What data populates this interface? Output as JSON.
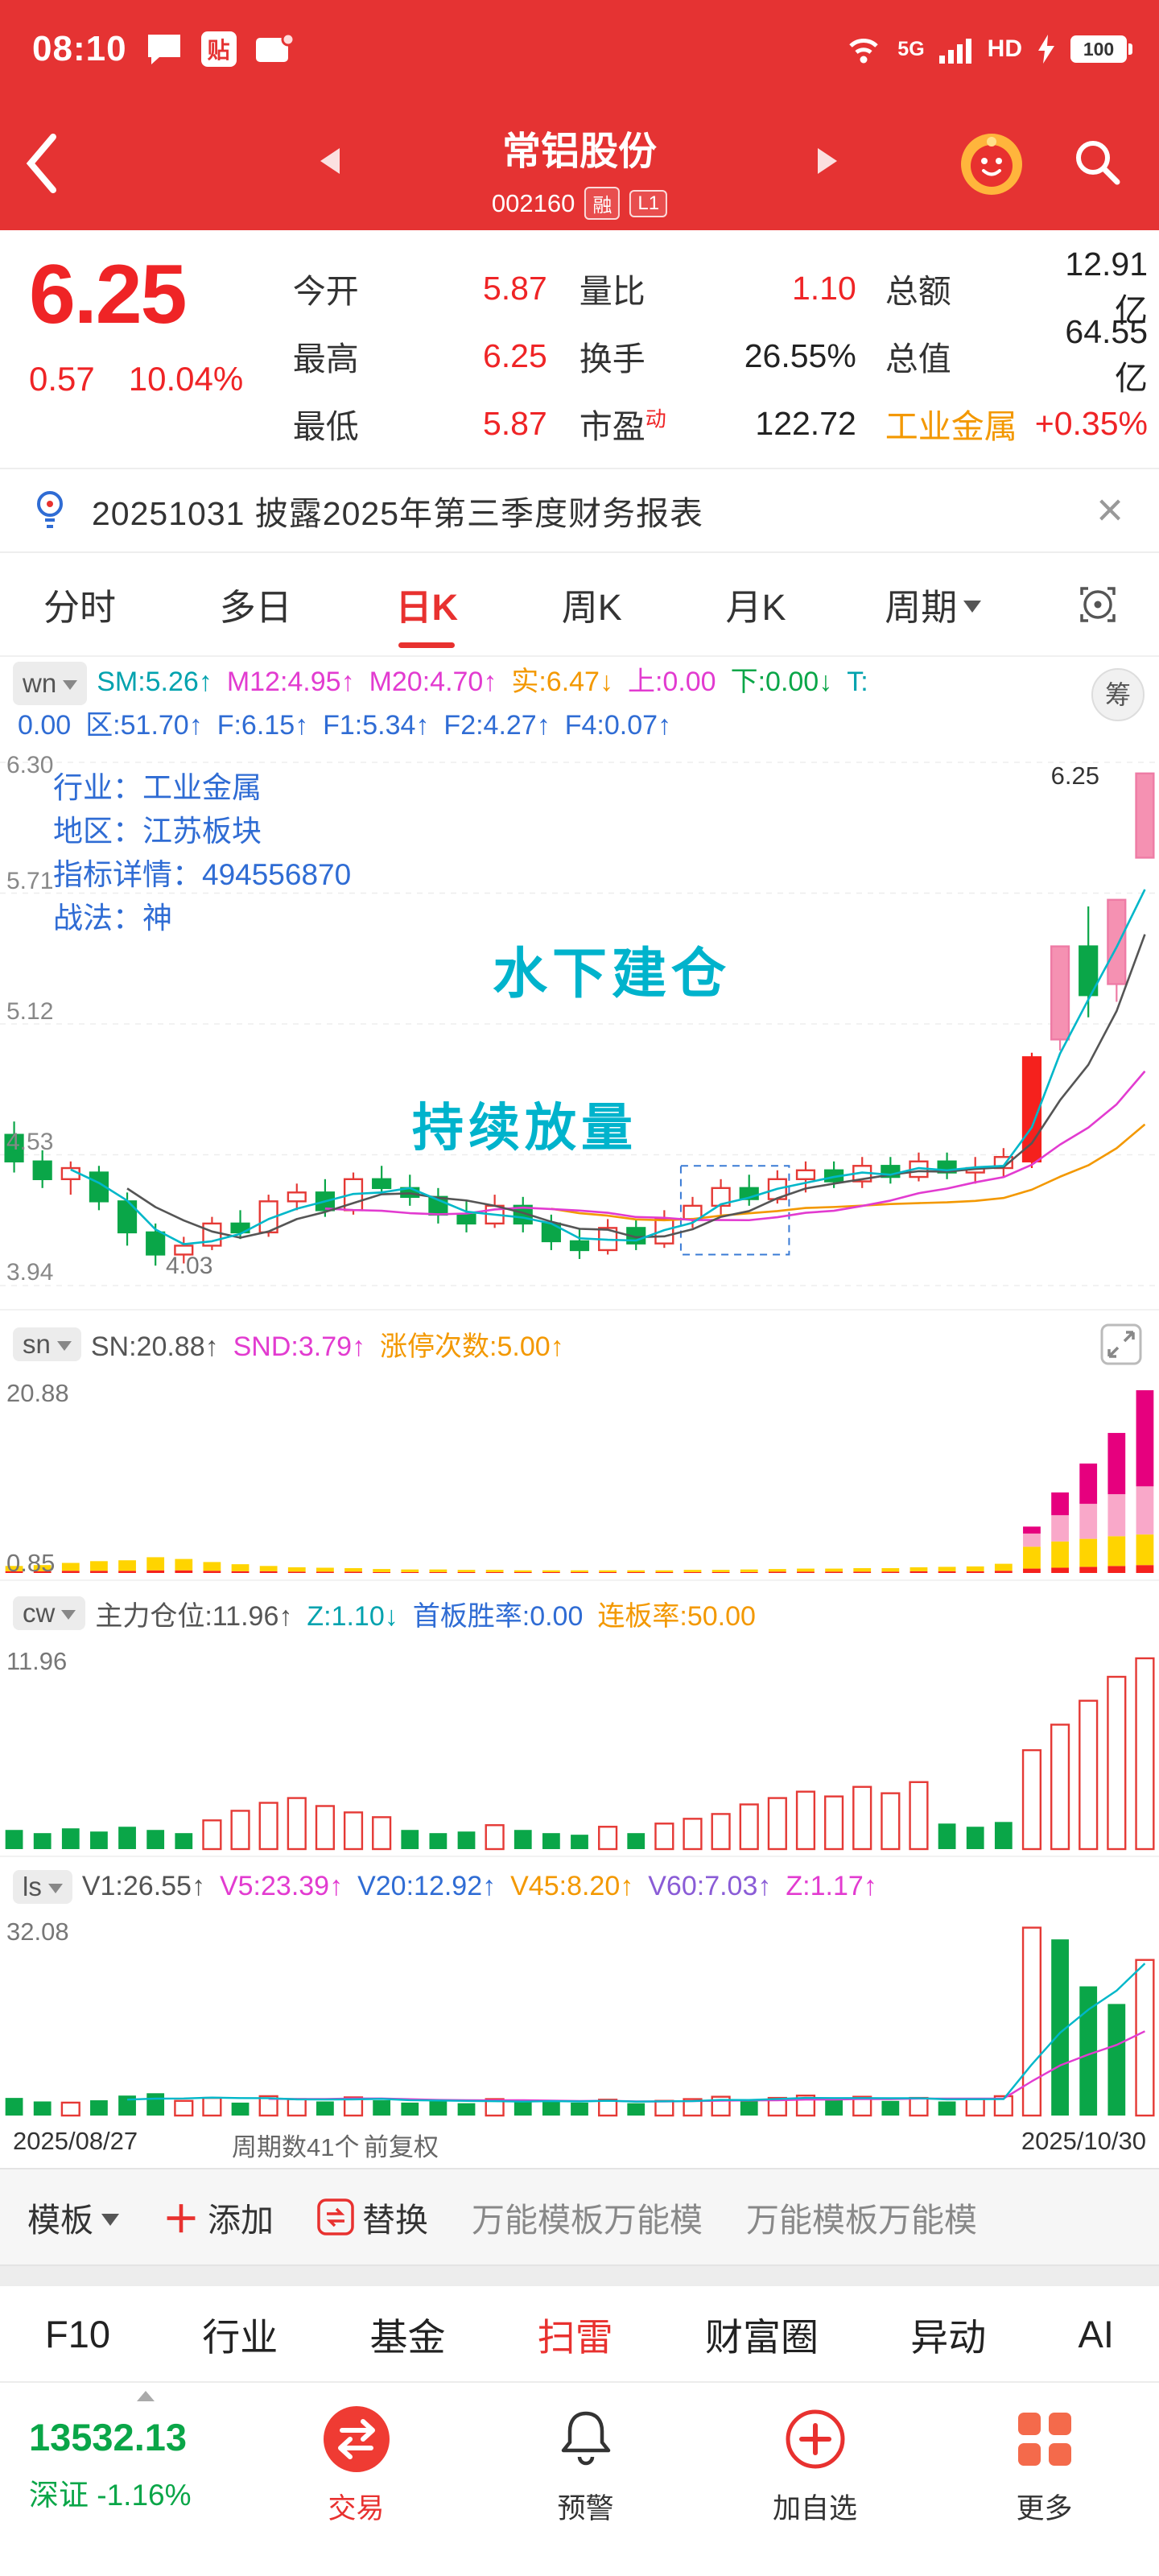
{
  "colors": {
    "accent_red": "#e8312f",
    "up_red": "#f5211d",
    "down_green": "#0aa648",
    "pink": "#f591b2",
    "magenta": "#e6007e",
    "yellow": "#ffd400",
    "blue": "#2f6cd4",
    "cyan": "#00b3cc",
    "orange": "#f39800"
  },
  "status_bar": {
    "time": "08:10",
    "badge": "贴",
    "net_label": "5G",
    "hd_label": "HD",
    "battery": "100"
  },
  "header": {
    "title": "常铝股份",
    "code": "002160",
    "badge_margin": "融",
    "badge_level": "L1"
  },
  "quote": {
    "price": "6.25",
    "change": "0.57",
    "change_pct": "10.04%",
    "open_label": "今开",
    "open": "5.87",
    "high_label": "最高",
    "high": "6.25",
    "low_label": "最低",
    "low": "5.87",
    "vol_ratio_label": "量比",
    "vol_ratio": "1.10",
    "turnover_label": "换手",
    "turnover": "26.55%",
    "pe_label": "市盈",
    "pe_sup": "动",
    "pe": "122.72",
    "amount_label": "总额",
    "amount": "12.91亿",
    "mktcap_label": "总值",
    "mktcap": "64.55亿",
    "sector_label": "工业金属",
    "sector_chg": "+0.35%"
  },
  "notice": {
    "text": "20251031 披露2025年第三季度财务报表"
  },
  "tabs": {
    "items": [
      "分时",
      "多日",
      "日K",
      "周K",
      "月K"
    ],
    "active": "日K",
    "period": "周期"
  },
  "indicators": {
    "chip_button": "筹",
    "wn": {
      "chip": "wn",
      "line1": [
        {
          "t": "SM:5.26↑",
          "c": "#00a2ae"
        },
        {
          "t": "M12:4.95↑",
          "c": "#e23bd0"
        },
        {
          "t": "M20:4.70↑",
          "c": "#e23bd0"
        },
        {
          "t": "实:6.47↓",
          "c": "#f39800"
        },
        {
          "t": "上:0.00",
          "c": "#e23bd0"
        },
        {
          "t": "下:0.00↓",
          "c": "#0aa648"
        },
        {
          "t": "T:",
          "c": "#00a2ae"
        }
      ],
      "line2": [
        {
          "t": "0.00",
          "c": "#2f6cd4"
        },
        {
          "t": "区:51.70↑",
          "c": "#2f6cd4"
        },
        {
          "t": "F:6.15↑",
          "c": "#2f6cd4"
        },
        {
          "t": "F1:5.34↑",
          "c": "#2f6cd4"
        },
        {
          "t": "F2:4.27↑",
          "c": "#2f6cd4"
        },
        {
          "t": "F4:0.07↑",
          "c": "#2f6cd4"
        }
      ]
    },
    "sn": {
      "chip": "sn",
      "segments": [
        {
          "t": "SN:20.88↑",
          "c": "#555555"
        },
        {
          "t": "SND:3.79↑",
          "c": "#e23bd0"
        },
        {
          "t": "涨停次数:5.00↑",
          "c": "#f39800"
        }
      ]
    },
    "cw": {
      "chip": "cw",
      "segments": [
        {
          "t": "主力仓位:11.96↑",
          "c": "#555555"
        },
        {
          "t": "Z:1.10↓",
          "c": "#00a2ae"
        },
        {
          "t": "首板胜率:0.00",
          "c": "#2f6cd4"
        },
        {
          "t": "连板率:50.00",
          "c": "#f39800"
        }
      ]
    },
    "ls": {
      "chip": "ls",
      "segments": [
        {
          "t": "V1:26.55↑",
          "c": "#555555"
        },
        {
          "t": "V5:23.39↑",
          "c": "#e23bd0"
        },
        {
          "t": "V20:12.92↑",
          "c": "#2f6cd4"
        },
        {
          "t": "V45:8.20↑",
          "c": "#f39800"
        },
        {
          "t": "V60:7.03↑",
          "c": "#8a5cd6"
        },
        {
          "t": "Z:1.17↑",
          "c": "#e23bd0"
        }
      ]
    }
  },
  "chart_data": {
    "type": "candlestick",
    "title": "常铝股份 002160 日K 前复权",
    "date_range": [
      "2025/08/27",
      "2025/10/30"
    ],
    "periods": 41,
    "main": {
      "axis_max": 6.3,
      "axis_min": 3.94,
      "ylabels": [
        "6.30",
        "5.71",
        "5.12",
        "4.53",
        "3.94"
      ],
      "max_label": "6.25",
      "min_label": "4.03",
      "overlay": {
        "industry": "行业：工业金属",
        "region": "地区：江苏板块",
        "detail": "指标详情：494556870",
        "strategy": "战法：神",
        "note1": "水下建仓",
        "note2": "持续放量"
      },
      "box": {
        "from": 25,
        "to": 28,
        "top": 4.48,
        "bottom": 4.08
      },
      "candles": [
        [
          4.62,
          4.68,
          4.45,
          4.5,
          "g"
        ],
        [
          4.5,
          4.55,
          4.38,
          4.42,
          "g"
        ],
        [
          4.42,
          4.5,
          4.35,
          4.47,
          "r"
        ],
        [
          4.45,
          4.48,
          4.28,
          4.32,
          "g"
        ],
        [
          4.32,
          4.36,
          4.12,
          4.18,
          "g"
        ],
        [
          4.18,
          4.22,
          4.03,
          4.08,
          "g"
        ],
        [
          4.08,
          4.16,
          4.04,
          4.12,
          "r"
        ],
        [
          4.12,
          4.25,
          4.1,
          4.22,
          "r"
        ],
        [
          4.22,
          4.28,
          4.15,
          4.18,
          "g"
        ],
        [
          4.18,
          4.35,
          4.16,
          4.32,
          "r"
        ],
        [
          4.32,
          4.4,
          4.28,
          4.36,
          "r"
        ],
        [
          4.36,
          4.42,
          4.25,
          4.28,
          "g"
        ],
        [
          4.28,
          4.45,
          4.26,
          4.42,
          "r"
        ],
        [
          4.42,
          4.48,
          4.35,
          4.38,
          "g"
        ],
        [
          4.38,
          4.44,
          4.3,
          4.34,
          "g"
        ],
        [
          4.34,
          4.38,
          4.22,
          4.26,
          "g"
        ],
        [
          4.26,
          4.32,
          4.18,
          4.22,
          "g"
        ],
        [
          4.22,
          4.35,
          4.2,
          4.3,
          "r"
        ],
        [
          4.3,
          4.34,
          4.18,
          4.22,
          "g"
        ],
        [
          4.22,
          4.26,
          4.1,
          4.14,
          "g"
        ],
        [
          4.14,
          4.2,
          4.06,
          4.1,
          "g"
        ],
        [
          4.1,
          4.24,
          4.08,
          4.2,
          "r"
        ],
        [
          4.2,
          4.24,
          4.1,
          4.13,
          "g"
        ],
        [
          4.13,
          4.28,
          4.11,
          4.24,
          "r"
        ],
        [
          4.24,
          4.34,
          4.2,
          4.3,
          "r"
        ],
        [
          4.3,
          4.42,
          4.26,
          4.38,
          "r"
        ],
        [
          4.38,
          4.44,
          4.3,
          4.33,
          "g"
        ],
        [
          4.33,
          4.46,
          4.31,
          4.42,
          "r"
        ],
        [
          4.42,
          4.5,
          4.36,
          4.46,
          "r"
        ],
        [
          4.46,
          4.5,
          4.38,
          4.41,
          "g"
        ],
        [
          4.41,
          4.52,
          4.38,
          4.48,
          "r"
        ],
        [
          4.48,
          4.52,
          4.4,
          4.43,
          "g"
        ],
        [
          4.43,
          4.54,
          4.41,
          4.5,
          "r"
        ],
        [
          4.5,
          4.54,
          4.42,
          4.45,
          "g"
        ],
        [
          4.45,
          4.52,
          4.4,
          4.47,
          "r"
        ],
        [
          4.47,
          4.56,
          4.43,
          4.52,
          "r"
        ],
        [
          4.5,
          4.99,
          4.47,
          4.97,
          "R"
        ],
        [
          5.05,
          5.47,
          5.0,
          5.47,
          "p"
        ],
        [
          5.47,
          5.65,
          5.15,
          5.25,
          "g"
        ],
        [
          5.3,
          5.68,
          5.22,
          5.68,
          "p"
        ],
        [
          5.87,
          6.25,
          5.87,
          6.25,
          "p"
        ]
      ]
    },
    "sn": {
      "ymax": 20.88,
      "ylabel_top": "20.88",
      "ylabel_bottom": "0.85",
      "bars": [
        [
          0.2,
          0.6,
          0,
          0
        ],
        [
          0.2,
          0.7,
          0,
          0
        ],
        [
          0.25,
          0.9,
          0,
          0
        ],
        [
          0.25,
          1.1,
          0,
          0
        ],
        [
          0.25,
          1.2,
          0,
          0
        ],
        [
          0.3,
          1.5,
          0,
          0
        ],
        [
          0.3,
          1.3,
          0,
          0
        ],
        [
          0.25,
          1.0,
          0,
          0
        ],
        [
          0.2,
          0.8,
          0,
          0
        ],
        [
          0.2,
          0.6,
          0,
          0
        ],
        [
          0.15,
          0.5,
          0,
          0
        ],
        [
          0.15,
          0.45,
          0,
          0
        ],
        [
          0.15,
          0.4,
          0,
          0
        ],
        [
          0.1,
          0.35,
          0,
          0
        ],
        [
          0.1,
          0.3,
          0,
          0
        ],
        [
          0.1,
          0.3,
          0,
          0
        ],
        [
          0.1,
          0.25,
          0,
          0
        ],
        [
          0.1,
          0.25,
          0,
          0
        ],
        [
          0.1,
          0.2,
          0,
          0
        ],
        [
          0.1,
          0.2,
          0,
          0
        ],
        [
          0.1,
          0.2,
          0,
          0
        ],
        [
          0.1,
          0.2,
          0,
          0
        ],
        [
          0.1,
          0.2,
          0,
          0
        ],
        [
          0.1,
          0.2,
          0,
          0
        ],
        [
          0.1,
          0.25,
          0,
          0
        ],
        [
          0.1,
          0.25,
          0,
          0
        ],
        [
          0.1,
          0.3,
          0,
          0
        ],
        [
          0.15,
          0.3,
          0,
          0
        ],
        [
          0.15,
          0.35,
          0,
          0
        ],
        [
          0.15,
          0.35,
          0,
          0
        ],
        [
          0.15,
          0.4,
          0,
          0
        ],
        [
          0.15,
          0.4,
          0,
          0
        ],
        [
          0.2,
          0.45,
          0,
          0
        ],
        [
          0.2,
          0.5,
          0,
          0
        ],
        [
          0.2,
          0.55,
          0,
          0
        ],
        [
          0.25,
          0.8,
          0,
          0
        ],
        [
          0.5,
          2.5,
          1.5,
          0.8
        ],
        [
          0.6,
          3.0,
          3.0,
          2.6
        ],
        [
          0.7,
          3.2,
          4.0,
          4.6
        ],
        [
          0.8,
          3.4,
          4.8,
          7.0
        ],
        [
          0.9,
          3.5,
          5.5,
          10.98
        ]
      ]
    },
    "cw": {
      "ymax": 11.96,
      "ylabel_top": "11.96",
      "bars": [
        [
          1.2,
          "g"
        ],
        [
          1.0,
          "g"
        ],
        [
          1.3,
          "g"
        ],
        [
          1.1,
          "g"
        ],
        [
          1.4,
          "g"
        ],
        [
          1.2,
          "g"
        ],
        [
          1.0,
          "g"
        ],
        [
          1.8,
          "r"
        ],
        [
          2.4,
          "r"
        ],
        [
          2.9,
          "r"
        ],
        [
          3.2,
          "r"
        ],
        [
          2.7,
          "r"
        ],
        [
          2.3,
          "r"
        ],
        [
          2.0,
          "r"
        ],
        [
          1.2,
          "g"
        ],
        [
          1.0,
          "g"
        ],
        [
          1.1,
          "g"
        ],
        [
          1.5,
          "r"
        ],
        [
          1.2,
          "g"
        ],
        [
          1.0,
          "g"
        ],
        [
          0.9,
          "g"
        ],
        [
          1.4,
          "r"
        ],
        [
          1.0,
          "g"
        ],
        [
          1.6,
          "r"
        ],
        [
          1.9,
          "r"
        ],
        [
          2.2,
          "r"
        ],
        [
          2.8,
          "r"
        ],
        [
          3.2,
          "r"
        ],
        [
          3.6,
          "r"
        ],
        [
          3.3,
          "r"
        ],
        [
          3.9,
          "r"
        ],
        [
          3.5,
          "r"
        ],
        [
          4.2,
          "r"
        ],
        [
          1.6,
          "g"
        ],
        [
          1.4,
          "g"
        ],
        [
          1.7,
          "g"
        ],
        [
          6.2,
          "r"
        ],
        [
          7.8,
          "r"
        ],
        [
          9.3,
          "r"
        ],
        [
          10.8,
          "r"
        ],
        [
          11.96,
          "r"
        ]
      ]
    },
    "ls": {
      "ymax": 32.08,
      "ylabel_top": "32.08",
      "bars": [
        [
          3.0,
          "g"
        ],
        [
          2.4,
          "g"
        ],
        [
          2.2,
          "r"
        ],
        [
          2.6,
          "g"
        ],
        [
          3.4,
          "g"
        ],
        [
          3.8,
          "g"
        ],
        [
          2.5,
          "r"
        ],
        [
          3.0,
          "r"
        ],
        [
          2.2,
          "g"
        ],
        [
          3.3,
          "r"
        ],
        [
          2.8,
          "r"
        ],
        [
          2.4,
          "g"
        ],
        [
          3.1,
          "r"
        ],
        [
          2.6,
          "g"
        ],
        [
          2.2,
          "g"
        ],
        [
          2.5,
          "g"
        ],
        [
          2.1,
          "g"
        ],
        [
          2.8,
          "r"
        ],
        [
          2.3,
          "g"
        ],
        [
          2.6,
          "g"
        ],
        [
          2.2,
          "g"
        ],
        [
          2.7,
          "r"
        ],
        [
          2.1,
          "g"
        ],
        [
          2.5,
          "r"
        ],
        [
          2.8,
          "r"
        ],
        [
          3.2,
          "r"
        ],
        [
          2.6,
          "g"
        ],
        [
          3.0,
          "r"
        ],
        [
          3.4,
          "r"
        ],
        [
          2.7,
          "g"
        ],
        [
          3.2,
          "r"
        ],
        [
          2.5,
          "g"
        ],
        [
          3.0,
          "r"
        ],
        [
          2.4,
          "g"
        ],
        [
          2.8,
          "r"
        ],
        [
          3.3,
          "r"
        ],
        [
          32.0,
          "r"
        ],
        [
          30.0,
          "g"
        ],
        [
          22.0,
          "g"
        ],
        [
          19.0,
          "g"
        ],
        [
          26.5,
          "r"
        ]
      ]
    }
  },
  "axis": {
    "start_date": "2025/08/27",
    "periods_label": "周期数41个",
    "adjust": "前复权",
    "end_date": "2025/10/30"
  },
  "template_bar": {
    "template": "模板",
    "add": "添加",
    "replace": "替换",
    "items": [
      "万能模板万能模",
      "万能模板万能模"
    ]
  },
  "function_tabs": {
    "items": [
      "F10",
      "行业",
      "基金",
      "扫雷",
      "财富圈",
      "异动",
      "AI"
    ],
    "active": "扫雷"
  },
  "bottom_nav": {
    "index_value": "13532.13",
    "index_name": "深证",
    "index_chg": "-1.16%",
    "items": [
      "交易",
      "预警",
      "加自选",
      "更多"
    ]
  }
}
